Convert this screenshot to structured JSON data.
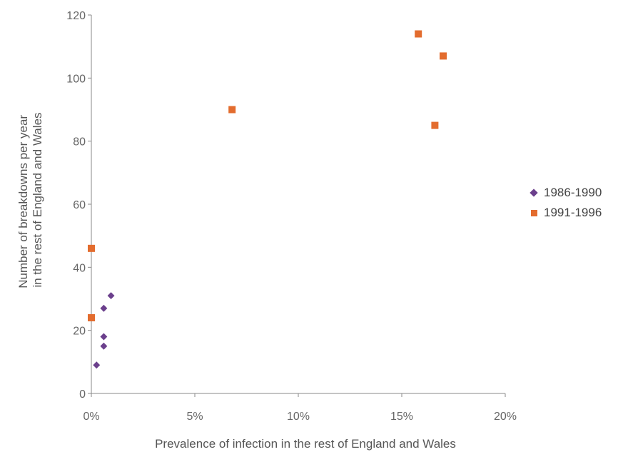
{
  "chart_data": {
    "type": "scatter",
    "xlabel": "Prevalence of infection in the rest of England and Wales",
    "ylabel_lines": [
      "Number of breakdowns per year",
      "in the rest of England and Wales"
    ],
    "xlim": [
      0,
      0.2
    ],
    "ylim": [
      0,
      120
    ],
    "x_ticks": [
      0,
      0.05,
      0.1,
      0.15,
      0.2
    ],
    "x_tick_labels": [
      "0%",
      "5%",
      "10%",
      "15%",
      "20%"
    ],
    "y_ticks": [
      0,
      20,
      40,
      60,
      80,
      100,
      120
    ],
    "y_tick_labels": [
      "0",
      "20",
      "40",
      "60",
      "80",
      "100",
      "120"
    ],
    "grid": false,
    "legend_position": "right",
    "series": [
      {
        "name": "1986-1990",
        "marker": "diamond",
        "color": "#6b3f8c",
        "points": [
          {
            "x": 0.0025,
            "y": 9
          },
          {
            "x": 0.006,
            "y": 15
          },
          {
            "x": 0.006,
            "y": 18
          },
          {
            "x": 0.006,
            "y": 27
          },
          {
            "x": 0.0095,
            "y": 31
          }
        ]
      },
      {
        "name": "1991-1996",
        "marker": "square",
        "color": "#e36c2e",
        "points": [
          {
            "x": 0.0,
            "y": 24
          },
          {
            "x": 0.0,
            "y": 46
          },
          {
            "x": 0.068,
            "y": 90
          },
          {
            "x": 0.158,
            "y": 114
          },
          {
            "x": 0.17,
            "y": 107
          },
          {
            "x": 0.166,
            "y": 85
          }
        ]
      }
    ]
  }
}
